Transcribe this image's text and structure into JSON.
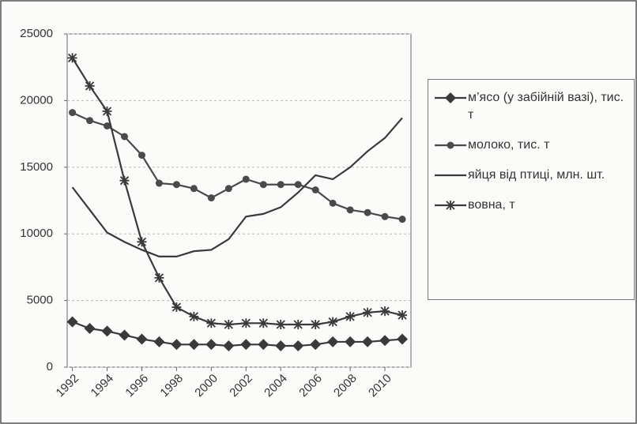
{
  "chart_data": {
    "type": "line",
    "x": [
      1992,
      1993,
      1994,
      1995,
      1996,
      1997,
      1998,
      1999,
      2000,
      2001,
      2002,
      2003,
      2004,
      2005,
      2006,
      2007,
      2008,
      2009,
      2010,
      2011
    ],
    "xlim": [
      1991.7,
      2011.5
    ],
    "xticks": [
      1992,
      1994,
      1996,
      1998,
      2000,
      2002,
      2004,
      2006,
      2008,
      2010
    ],
    "ylim": [
      0,
      25000
    ],
    "yticks": [
      0,
      5000,
      10000,
      15000,
      20000,
      25000
    ],
    "grid": true,
    "legend": "right",
    "series": [
      {
        "name": "м’ясо (у забійній вазі), тис. т",
        "color": "#3a3a3a",
        "marker": "diamond",
        "values": [
          3400,
          2900,
          2700,
          2400,
          2100,
          1900,
          1700,
          1700,
          1700,
          1600,
          1700,
          1700,
          1600,
          1600,
          1700,
          1900,
          1900,
          1900,
          2000,
          2100
        ]
      },
      {
        "name": "молоко, тис. т",
        "color": "#4a4a4a",
        "marker": "circle",
        "values": [
          19100,
          18500,
          18100,
          17300,
          15900,
          13800,
          13700,
          13400,
          12700,
          13400,
          14100,
          13700,
          13700,
          13700,
          13300,
          12300,
          11800,
          11600,
          11300,
          11100
        ]
      },
      {
        "name": "яйця від птиці, млн. шт.",
        "color": "#3a3a3a",
        "marker": "none",
        "values": [
          13500,
          11800,
          10100,
          9400,
          8800,
          8300,
          8300,
          8700,
          8800,
          9600,
          11300,
          11500,
          12000,
          13100,
          14400,
          14100,
          15000,
          16200,
          17200,
          18700
        ]
      },
      {
        "name": "вовна, т",
        "color": "#3a3a3a",
        "marker": "star",
        "values": [
          23200,
          21100,
          19200,
          14000,
          9400,
          6700,
          4500,
          3800,
          3300,
          3200,
          3300,
          3300,
          3200,
          3200,
          3200,
          3400,
          3800,
          4100,
          4200,
          3900
        ]
      }
    ]
  }
}
